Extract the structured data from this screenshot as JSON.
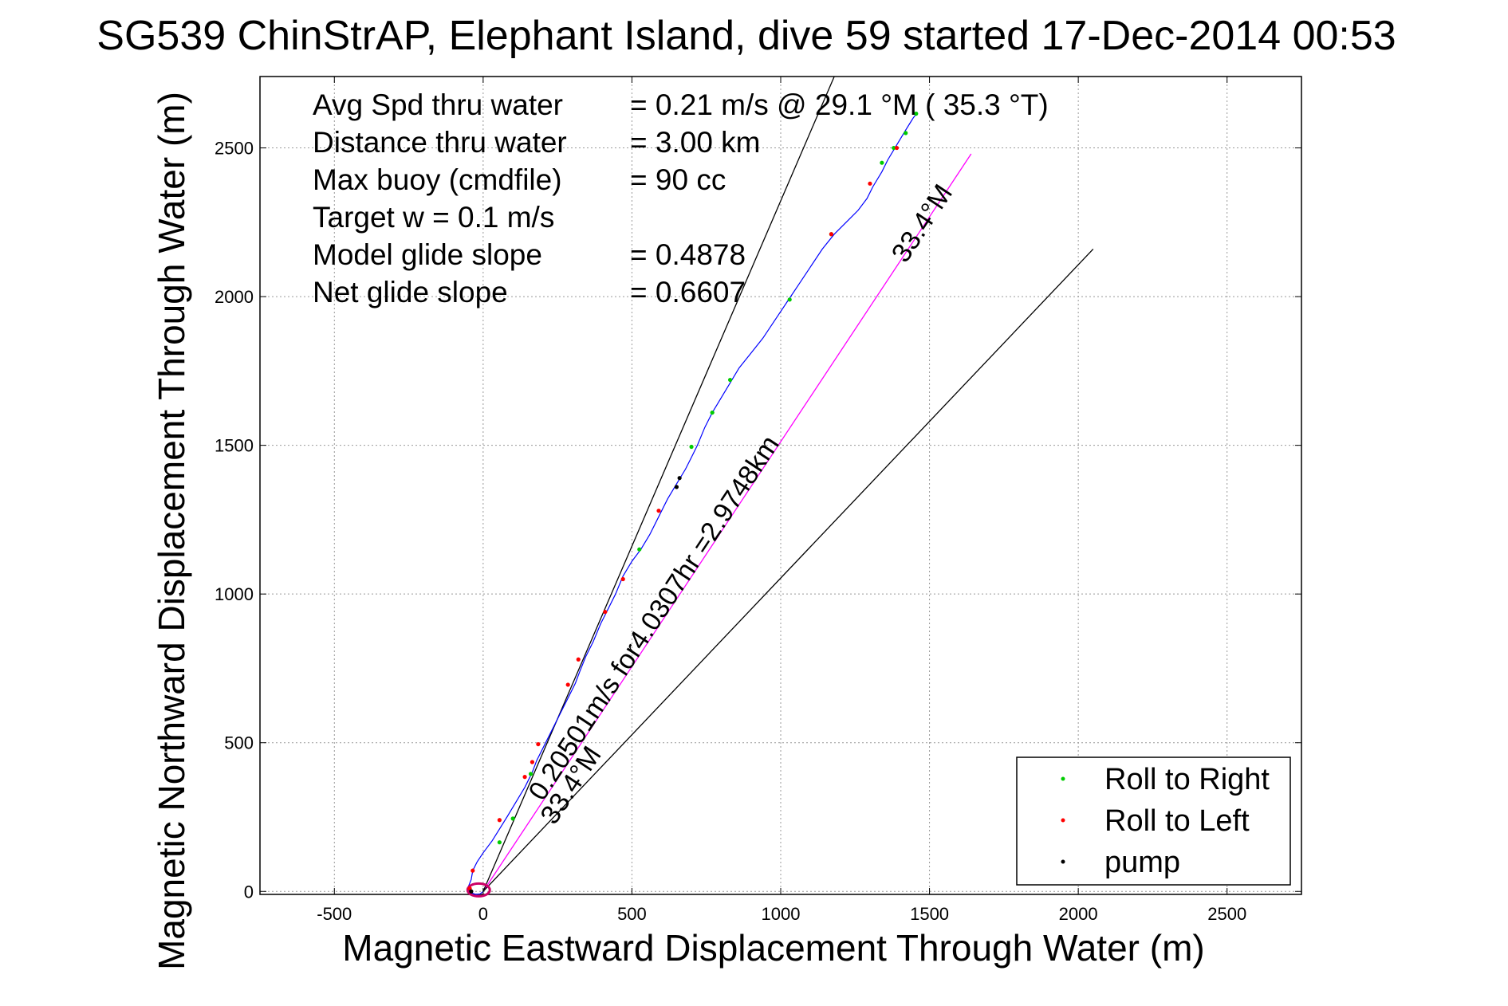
{
  "chart_data": {
    "type": "scatter",
    "title": "SG539 ChinStrAP, Elephant Island, dive 59 started 17-Dec-2014 00:53",
    "xlabel": "Magnetic Eastward Displacement Through Water (m)",
    "ylabel": "Magnetic Northward Displacement Through Water (m)",
    "xlim": [
      -750,
      2750
    ],
    "ylim": [
      -10,
      2740
    ],
    "xticks": [
      -500,
      0,
      500,
      1000,
      1500,
      2000,
      2500
    ],
    "yticks": [
      0,
      500,
      1000,
      1500,
      2000,
      2500
    ],
    "xtick_labels": [
      "-500",
      "0",
      "500",
      "1000",
      "1500",
      "2000",
      "2500"
    ],
    "ytick_labels": [
      "0",
      "500",
      "1000",
      "1500",
      "2000",
      "2500"
    ],
    "grid": true,
    "stats": [
      {
        "label": "Avg Spd thru water",
        "value": "=  0.21 m/s @  29.1 °M ( 35.3 °T)"
      },
      {
        "label": "Distance thru water",
        "value": "=  3.00 km"
      },
      {
        "label": "Max buoy (cmdfile)",
        "value": "= 90 cc"
      },
      {
        "label": "Target w    = 0.1 m/s",
        "value": ""
      },
      {
        "label": "Model glide slope",
        "value": "= 0.4878"
      },
      {
        "label": "Net glide slope",
        "value": "= 0.6607"
      }
    ],
    "track": {
      "color": "#0000ff",
      "points": [
        [
          0,
          0
        ],
        [
          -10,
          -8
        ],
        [
          -25,
          -10
        ],
        [
          -40,
          -5
        ],
        [
          -50,
          5
        ],
        [
          -48,
          20
        ],
        [
          -40,
          40
        ],
        [
          -35,
          70
        ],
        [
          -20,
          100
        ],
        [
          0,
          130
        ],
        [
          30,
          170
        ],
        [
          55,
          210
        ],
        [
          80,
          250
        ],
        [
          110,
          300
        ],
        [
          140,
          350
        ],
        [
          165,
          400
        ],
        [
          180,
          440
        ],
        [
          200,
          480
        ],
        [
          230,
          540
        ],
        [
          260,
          600
        ],
        [
          285,
          650
        ],
        [
          310,
          700
        ],
        [
          325,
          740
        ],
        [
          345,
          790
        ],
        [
          370,
          840
        ],
        [
          395,
          900
        ],
        [
          420,
          950
        ],
        [
          445,
          1000
        ],
        [
          470,
          1060
        ],
        [
          500,
          1110
        ],
        [
          530,
          1150
        ],
        [
          560,
          1200
        ],
        [
          590,
          1260
        ],
        [
          620,
          1320
        ],
        [
          650,
          1370
        ],
        [
          680,
          1420
        ],
        [
          700,
          1460
        ],
        [
          720,
          1500
        ],
        [
          745,
          1560
        ],
        [
          770,
          1610
        ],
        [
          800,
          1660
        ],
        [
          830,
          1710
        ],
        [
          860,
          1760
        ],
        [
          900,
          1810
        ],
        [
          940,
          1860
        ],
        [
          980,
          1920
        ],
        [
          1020,
          1980
        ],
        [
          1060,
          2040
        ],
        [
          1100,
          2100
        ],
        [
          1140,
          2160
        ],
        [
          1180,
          2210
        ],
        [
          1220,
          2250
        ],
        [
          1260,
          2290
        ],
        [
          1290,
          2330
        ],
        [
          1310,
          2370
        ],
        [
          1340,
          2420
        ],
        [
          1360,
          2460
        ],
        [
          1390,
          2510
        ],
        [
          1420,
          2560
        ],
        [
          1445,
          2600
        ],
        [
          1460,
          2620
        ]
      ]
    },
    "roll_right_points": [
      [
        55,
        165
      ],
      [
        100,
        245
      ],
      [
        160,
        395
      ],
      [
        525,
        1150
      ],
      [
        700,
        1495
      ],
      [
        770,
        1610
      ],
      [
        830,
        1720
      ],
      [
        1030,
        1990
      ],
      [
        1170,
        2210
      ],
      [
        1340,
        2450
      ],
      [
        1380,
        2500
      ],
      [
        1420,
        2550
      ],
      [
        1455,
        2615
      ]
    ],
    "roll_left_points": [
      [
        -45,
        10
      ],
      [
        -35,
        70
      ],
      [
        55,
        240
      ],
      [
        140,
        385
      ],
      [
        165,
        435
      ],
      [
        185,
        495
      ],
      [
        285,
        695
      ],
      [
        320,
        780
      ],
      [
        410,
        940
      ],
      [
        470,
        1050
      ],
      [
        590,
        1280
      ],
      [
        1170,
        2210
      ],
      [
        1300,
        2380
      ],
      [
        1390,
        2500
      ]
    ],
    "pump_points": [
      [
        650,
        1360
      ],
      [
        660,
        1390
      ],
      [
        -40,
        0
      ]
    ],
    "reference_lines": [
      {
        "from": [
          0,
          0
        ],
        "to": [
          1640,
          2480
        ],
        "color": "#ff00ff",
        "label": "33.4°M",
        "label_at": [
          1500,
          2230
        ]
      },
      {
        "from": [
          0,
          0
        ],
        "to": [
          2050,
          2160
        ],
        "color": "#000000",
        "label": "",
        "label_at": null
      },
      {
        "from": [
          0,
          0
        ],
        "to": [
          1180,
          2740
        ],
        "color": "#000000",
        "label": "",
        "label_at": null
      }
    ],
    "annotations": [
      {
        "text": "0.20501m/s for4.0307hr =2.9748km",
        "at": [
          200,
          300
        ]
      },
      {
        "text": "33.4°M",
        "at": [
          240,
          220
        ]
      }
    ],
    "legend": {
      "placement": "bottom-right",
      "entries": [
        {
          "label": "Roll to Right",
          "color": "#00cc00"
        },
        {
          "label": "Roll to Left",
          "color": "#ff0000"
        },
        {
          "label": "pump",
          "color": "#000000"
        }
      ]
    }
  }
}
